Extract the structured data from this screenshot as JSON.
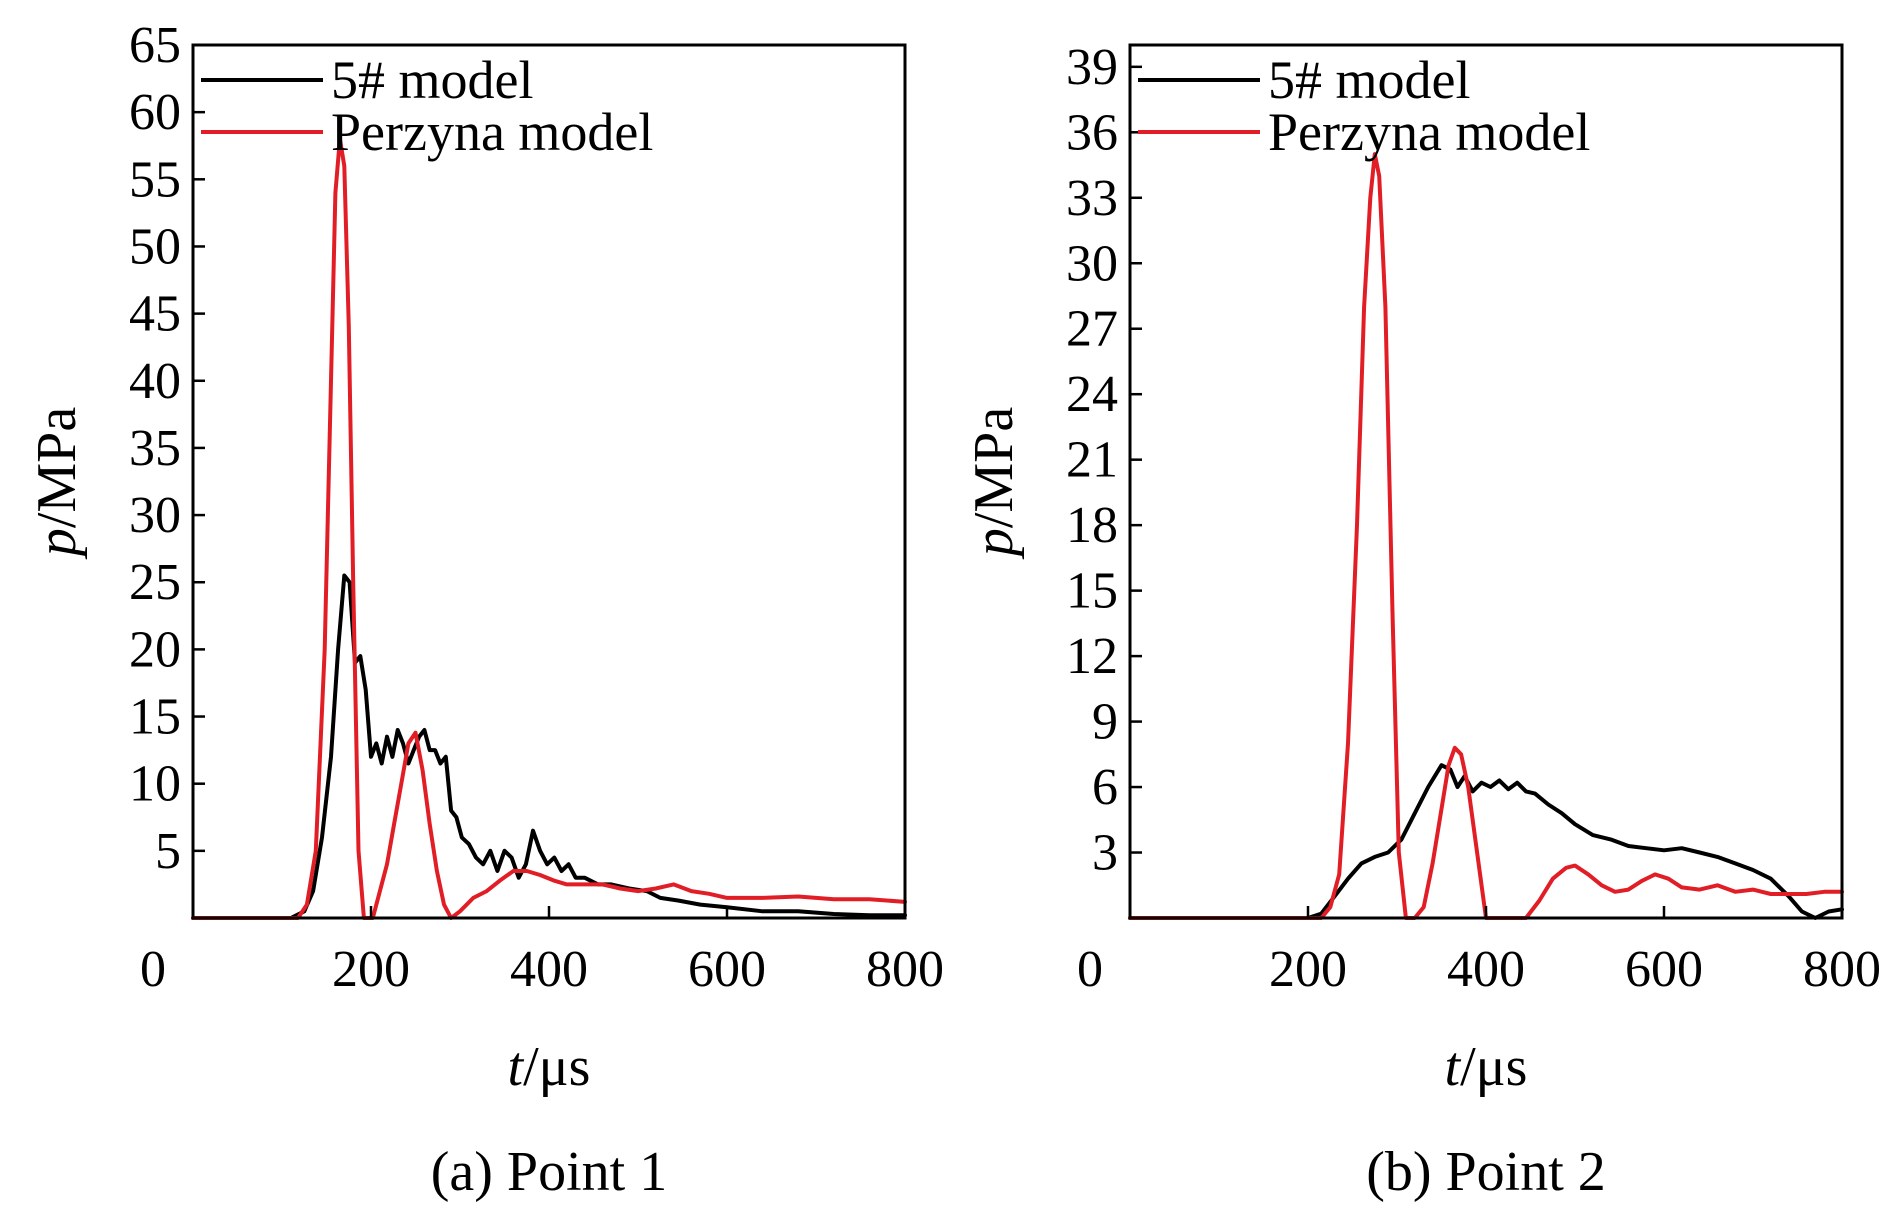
{
  "chart_data": [
    {
      "type": "line",
      "caption": "(a) Point 1",
      "xlabel_var": "t",
      "xlabel_unit": "/μs",
      "ylabel_var": "p",
      "ylabel_unit": "/MPa",
      "xlim": [
        0,
        800
      ],
      "ylim": [
        0,
        65
      ],
      "xticks": [
        0,
        200,
        400,
        600,
        800
      ],
      "yticks": [
        5,
        10,
        15,
        20,
        25,
        30,
        35,
        40,
        45,
        50,
        55,
        60,
        65
      ],
      "grid": false,
      "legend_position": "top-left",
      "series": [
        {
          "name": "5# model",
          "color": "#000000",
          "x": [
            0,
            110,
            125,
            135,
            145,
            155,
            163,
            170,
            176,
            182,
            188,
            194,
            200,
            206,
            212,
            218,
            224,
            230,
            236,
            242,
            248,
            254,
            260,
            266,
            272,
            278,
            284,
            290,
            296,
            302,
            310,
            318,
            326,
            334,
            342,
            350,
            358,
            366,
            374,
            382,
            390,
            398,
            406,
            414,
            422,
            430,
            440,
            455,
            470,
            490,
            510,
            525,
            545,
            570,
            600,
            640,
            680,
            720,
            760,
            800
          ],
          "y": [
            0,
            0,
            0.5,
            2,
            6,
            12,
            20,
            25.5,
            25,
            19,
            19.5,
            17,
            12,
            13,
            11.5,
            13.5,
            12,
            14,
            13,
            11.5,
            12.5,
            13.5,
            14,
            12.5,
            12.5,
            11.5,
            12,
            8,
            7.5,
            6,
            5.5,
            4.5,
            4,
            5,
            3.5,
            5,
            4.5,
            3,
            4,
            6.5,
            5,
            4,
            4.5,
            3.5,
            4,
            3,
            3,
            2.5,
            2.5,
            2.2,
            2,
            1.5,
            1.3,
            1,
            0.8,
            0.5,
            0.5,
            0.3,
            0.2,
            0.2
          ]
        },
        {
          "name": "Perzyna model",
          "color": "#e11e26",
          "x": [
            0,
            118,
            128,
            138,
            148,
            155,
            160,
            165,
            170,
            175,
            180,
            186,
            192,
            196,
            202,
            210,
            218,
            226,
            234,
            242,
            250,
            258,
            266,
            274,
            282,
            290,
            300,
            315,
            330,
            345,
            360,
            375,
            390,
            405,
            420,
            440,
            460,
            480,
            500,
            520,
            540,
            560,
            580,
            600,
            640,
            680,
            720,
            760,
            800
          ],
          "y": [
            0,
            0,
            1,
            5,
            20,
            40,
            54,
            58,
            56,
            44,
            25,
            5,
            0,
            0,
            0,
            2,
            4,
            7,
            10,
            13,
            13.8,
            11,
            7,
            3.5,
            1,
            0,
            0.5,
            1.5,
            2,
            2.8,
            3.5,
            3.5,
            3.2,
            2.8,
            2.5,
            2.5,
            2.5,
            2.2,
            2,
            2.2,
            2.5,
            2,
            1.8,
            1.5,
            1.5,
            1.6,
            1.4,
            1.4,
            1.2
          ]
        }
      ]
    },
    {
      "type": "line",
      "caption": "(b) Point 2",
      "xlabel_var": "t",
      "xlabel_unit": "/μs",
      "ylabel_var": "p",
      "ylabel_unit": "/MPa",
      "xlim": [
        0,
        800
      ],
      "ylim": [
        0,
        40
      ],
      "xticks": [
        0,
        200,
        400,
        600,
        800
      ],
      "yticks": [
        3,
        6,
        9,
        12,
        15,
        18,
        21,
        24,
        27,
        30,
        33,
        36,
        39
      ],
      "grid": false,
      "legend_position": "top-left",
      "series": [
        {
          "name": "5# model",
          "color": "#000000",
          "x": [
            0,
            200,
            215,
            230,
            245,
            260,
            275,
            290,
            305,
            320,
            335,
            350,
            360,
            368,
            376,
            385,
            395,
            405,
            415,
            425,
            435,
            445,
            455,
            470,
            485,
            500,
            520,
            540,
            560,
            580,
            600,
            620,
            640,
            660,
            680,
            700,
            720,
            740,
            755,
            770,
            785,
            800
          ],
          "y": [
            0,
            0,
            0.2,
            1,
            1.8,
            2.5,
            2.8,
            3,
            3.6,
            4.8,
            6,
            7,
            6.8,
            6,
            6.5,
            5.8,
            6.2,
            6,
            6.3,
            5.9,
            6.2,
            5.8,
            5.7,
            5.2,
            4.8,
            4.3,
            3.8,
            3.6,
            3.3,
            3.2,
            3.1,
            3.2,
            3,
            2.8,
            2.5,
            2.2,
            1.8,
            1,
            0.3,
            0,
            0.3,
            0.4
          ]
        },
        {
          "name": "Perzyna model",
          "color": "#e11e26",
          "x": [
            0,
            215,
            225,
            235,
            245,
            255,
            263,
            270,
            275,
            280,
            287,
            295,
            302,
            310,
            320,
            330,
            340,
            350,
            358,
            365,
            372,
            380,
            390,
            400,
            410,
            420,
            430,
            445,
            460,
            475,
            490,
            500,
            515,
            530,
            545,
            560,
            575,
            590,
            605,
            620,
            640,
            660,
            680,
            700,
            720,
            740,
            760,
            780,
            800
          ],
          "y": [
            0,
            0,
            0.5,
            2,
            8,
            18,
            28,
            33,
            35,
            34,
            28,
            14,
            3,
            0,
            0,
            0.5,
            2.5,
            5,
            7,
            7.8,
            7.5,
            6,
            3,
            0,
            0,
            0,
            0,
            0,
            0.8,
            1.8,
            2.3,
            2.4,
            2,
            1.5,
            1.2,
            1.3,
            1.7,
            2,
            1.8,
            1.4,
            1.3,
            1.5,
            1.2,
            1.3,
            1.1,
            1.1,
            1.1,
            1.2,
            1.2
          ]
        }
      ]
    }
  ]
}
